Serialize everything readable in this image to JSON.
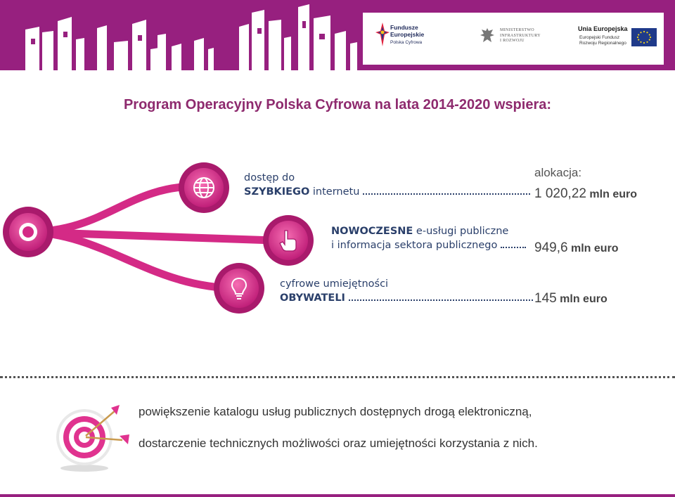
{
  "header": {
    "logo_fe": {
      "line1": "Fundusze",
      "line2": "Europejskie",
      "sub": "Polska Cyfrowa"
    },
    "logo_ministry": {
      "line1": "MINISTERSTWO",
      "line2": "INFRASTRUKTURY",
      "line3": "I ROZWOJU"
    },
    "logo_eu": {
      "title": "Unia Europejska",
      "sub1": "Europejski Fundusz",
      "sub2": "Rozwoju Regionalnego"
    }
  },
  "title": "Program Operacyjny Polska Cyfrowa na lata 2014-2020 wspiera:",
  "allocation_label": "alokacja:",
  "axes": [
    {
      "line1": "dostęp do",
      "line2_bold": "SZYBKIEGO",
      "line2_rest": " internetu",
      "amount": "1 020,22",
      "unit": "mln euro",
      "icon": "globe-icon"
    },
    {
      "line1_bold": "NOWOCZESNE",
      "line1_rest": " e-usługi publiczne",
      "line2": "i informacja sektora publicznego",
      "amount": "949,6",
      "unit": "mln euro",
      "icon": "pointer-hand-icon"
    },
    {
      "line1": "cyfrowe umiejętności",
      "line2_bold": "OBYWATELI",
      "amount": "145",
      "unit": "mln euro",
      "icon": "lightbulb-icon"
    }
  ],
  "goals": [
    "powiększenie katalogu usług publicznych dostępnych drogą elektroniczną,",
    "dostarczenie technicznych możliwości oraz umiejętności korzystania z nich."
  ],
  "colors": {
    "brand": "#97207f",
    "accent_pink": "#e0338f",
    "text_blue": "#2a3f6a"
  }
}
